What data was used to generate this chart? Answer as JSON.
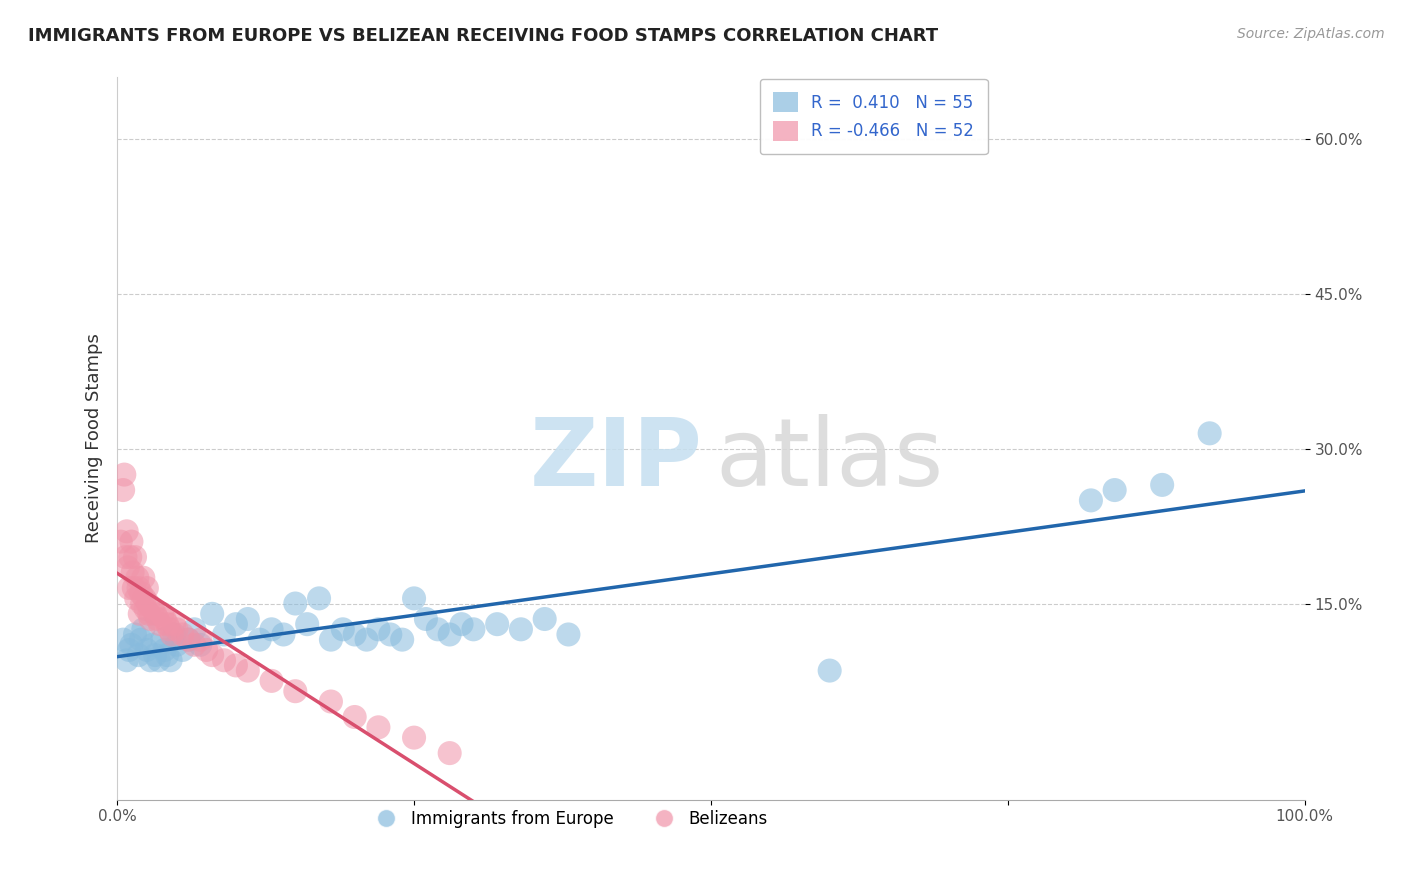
{
  "title": "IMMIGRANTS FROM EUROPE VS BELIZEAN RECEIVING FOOD STAMPS CORRELATION CHART",
  "source": "Source: ZipAtlas.com",
  "ylabel": "Receiving Food Stamps",
  "xlim": [
    0,
    1.0
  ],
  "ylim": [
    -0.04,
    0.66
  ],
  "grid_color": "#cccccc",
  "background_color": "#ffffff",
  "blue_color": "#88bbdd",
  "pink_color": "#f093a8",
  "blue_line_color": "#2166ac",
  "pink_line_color": "#d94f6e",
  "blue_R": 0.41,
  "blue_N": 55,
  "pink_R": -0.466,
  "pink_N": 52,
  "blue_scatter_x": [
    0.005,
    0.008,
    0.01,
    0.012,
    0.015,
    0.018,
    0.02,
    0.022,
    0.025,
    0.028,
    0.03,
    0.032,
    0.035,
    0.038,
    0.04,
    0.042,
    0.045,
    0.048,
    0.05,
    0.055,
    0.06,
    0.065,
    0.07,
    0.08,
    0.09,
    0.1,
    0.11,
    0.12,
    0.13,
    0.14,
    0.15,
    0.16,
    0.17,
    0.18,
    0.19,
    0.2,
    0.21,
    0.22,
    0.23,
    0.24,
    0.25,
    0.26,
    0.27,
    0.28,
    0.29,
    0.3,
    0.32,
    0.34,
    0.36,
    0.38,
    0.6,
    0.82,
    0.84,
    0.88,
    0.92
  ],
  "blue_scatter_y": [
    0.115,
    0.095,
    0.105,
    0.11,
    0.12,
    0.1,
    0.115,
    0.125,
    0.105,
    0.095,
    0.11,
    0.1,
    0.095,
    0.115,
    0.105,
    0.1,
    0.095,
    0.12,
    0.11,
    0.105,
    0.115,
    0.125,
    0.11,
    0.14,
    0.12,
    0.13,
    0.135,
    0.115,
    0.125,
    0.12,
    0.15,
    0.13,
    0.155,
    0.115,
    0.125,
    0.12,
    0.115,
    0.125,
    0.12,
    0.115,
    0.155,
    0.135,
    0.125,
    0.12,
    0.13,
    0.125,
    0.13,
    0.125,
    0.135,
    0.12,
    0.085,
    0.25,
    0.26,
    0.265,
    0.315
  ],
  "pink_scatter_x": [
    0.003,
    0.005,
    0.006,
    0.007,
    0.008,
    0.009,
    0.01,
    0.011,
    0.012,
    0.013,
    0.014,
    0.015,
    0.016,
    0.017,
    0.018,
    0.019,
    0.02,
    0.021,
    0.022,
    0.023,
    0.024,
    0.025,
    0.026,
    0.027,
    0.028,
    0.03,
    0.032,
    0.034,
    0.036,
    0.038,
    0.04,
    0.042,
    0.044,
    0.046,
    0.048,
    0.05,
    0.055,
    0.06,
    0.065,
    0.07,
    0.075,
    0.08,
    0.09,
    0.1,
    0.11,
    0.13,
    0.15,
    0.18,
    0.2,
    0.22,
    0.25,
    0.28
  ],
  "pink_scatter_y": [
    0.21,
    0.26,
    0.275,
    0.195,
    0.22,
    0.185,
    0.165,
    0.195,
    0.21,
    0.18,
    0.165,
    0.195,
    0.155,
    0.175,
    0.165,
    0.14,
    0.16,
    0.15,
    0.175,
    0.155,
    0.145,
    0.165,
    0.15,
    0.14,
    0.135,
    0.145,
    0.14,
    0.135,
    0.13,
    0.14,
    0.135,
    0.13,
    0.125,
    0.12,
    0.13,
    0.125,
    0.12,
    0.115,
    0.11,
    0.115,
    0.105,
    0.1,
    0.095,
    0.09,
    0.085,
    0.075,
    0.065,
    0.055,
    0.04,
    0.03,
    0.02,
    0.005
  ]
}
